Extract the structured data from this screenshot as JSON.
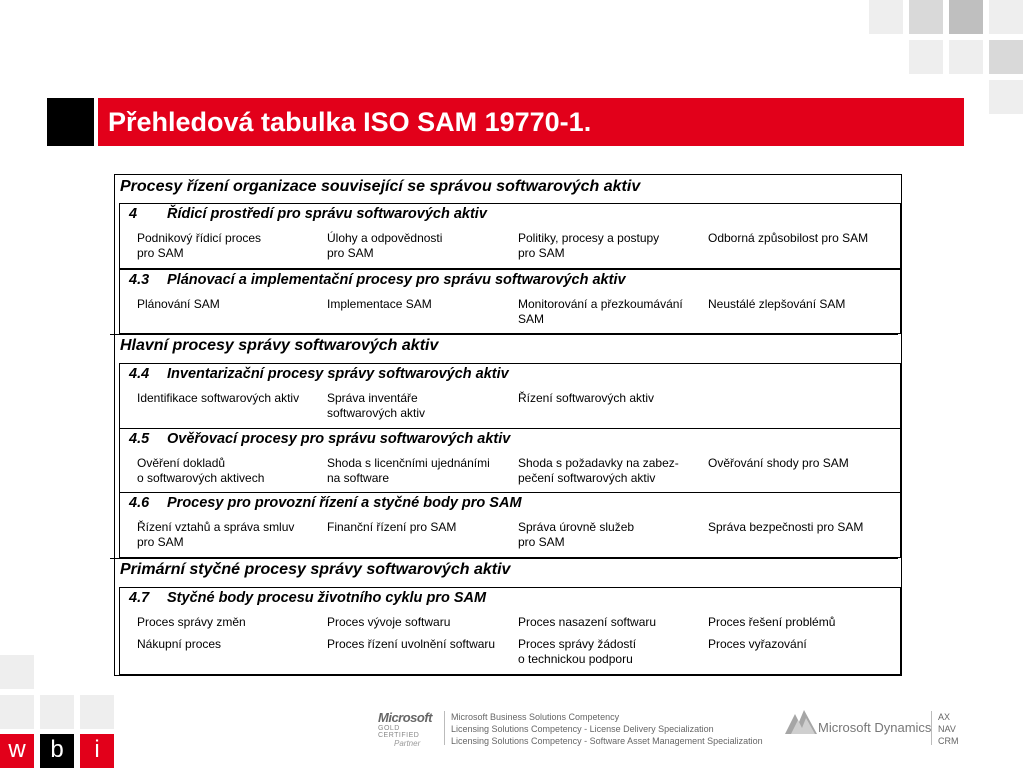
{
  "title": "Přehledová tabulka ISO SAM 19770-1.",
  "colors": {
    "accent": "#e2001a",
    "tile_light": "#eeeeee",
    "tile_mid": "#d9d9d9",
    "tile_dark": "#bfbfbf"
  },
  "table": {
    "groups": [
      {
        "heading": "Procesy řízení organizace související se správou softwarových aktiv",
        "sections": [
          {
            "number": "4",
            "heading": "Řídicí prostředí pro správu softwarových aktiv",
            "rows": [
              [
                "Podnikový řídicí proces\npro SAM",
                "Úlohy a odpovědnosti\npro SAM",
                "Politiky, procesy a postupy\npro SAM",
                "Odborná způsobilost pro SAM"
              ]
            ]
          },
          {
            "number": "4.3",
            "heading": "Plánovací a implementační procesy pro správu softwarových aktiv",
            "rows": [
              [
                "Plánování SAM",
                "Implementace SAM",
                "Monitorování a přezkoumávání\nSAM",
                "Neustálé zlepšování SAM"
              ]
            ]
          }
        ]
      },
      {
        "heading": "Hlavní procesy správy softwarových aktiv",
        "sections": [
          {
            "number": "4.4",
            "heading": "Inventarizační procesy správy softwarových aktiv",
            "rows": [
              [
                "Identifikace softwarových aktiv",
                "Správa inventáře\nsoftwarových aktiv",
                "Řízení softwarových aktiv",
                ""
              ]
            ]
          },
          {
            "number": "4.5",
            "heading": "Ověřovací procesy pro správu softwarových aktiv",
            "rows": [
              [
                "Ověření dokladů\no softwarových aktivech",
                "Shoda s licenčními ujednáními\nna software",
                "Shoda s požadavky na zabez-\npečení softwarových aktiv",
                "Ověřování shody pro SAM"
              ]
            ]
          },
          {
            "number": "4.6",
            "heading": "Procesy pro provozní řízení a styčné body pro SAM",
            "rows": [
              [
                "Řízení vztahů a správa smluv\npro SAM",
                "Finanční řízení pro SAM",
                "Správa úrovně služeb\npro SAM",
                "Správa bezpečnosti pro SAM"
              ]
            ]
          }
        ]
      },
      {
        "heading": "Primární styčné procesy správy softwarových aktiv",
        "sections": [
          {
            "number": "4.7",
            "heading": "Styčné body procesu životního cyklu pro SAM",
            "rows": [
              [
                "Proces správy změn",
                "Proces vývoje softwaru",
                "Proces nasazení softwaru",
                "Proces řešení problémů"
              ],
              [
                "Nákupní proces",
                "Proces řízení uvolnění softwaru",
                "Proces správy žádostí\no technickou podporu",
                "Proces vyřazování"
              ]
            ]
          }
        ]
      }
    ]
  },
  "footer": {
    "ms_logo": "Microsoft",
    "ms_gold": "GOLD CERTIFIED",
    "ms_partner": "Partner",
    "competencies": [
      "Microsoft Business Solutions Competency",
      "Licensing Solutions Competency - License Delivery Specialization",
      "Licensing Solutions Competency - Software Asset Management Specialization"
    ],
    "dynamics": "Microsoft Dynamics",
    "products": [
      "AX",
      "NAV",
      "CRM"
    ]
  },
  "logo": {
    "letters": [
      "w",
      "b",
      "i"
    ],
    "colors": [
      "#e2001a",
      "#000000",
      "#e2001a"
    ]
  }
}
